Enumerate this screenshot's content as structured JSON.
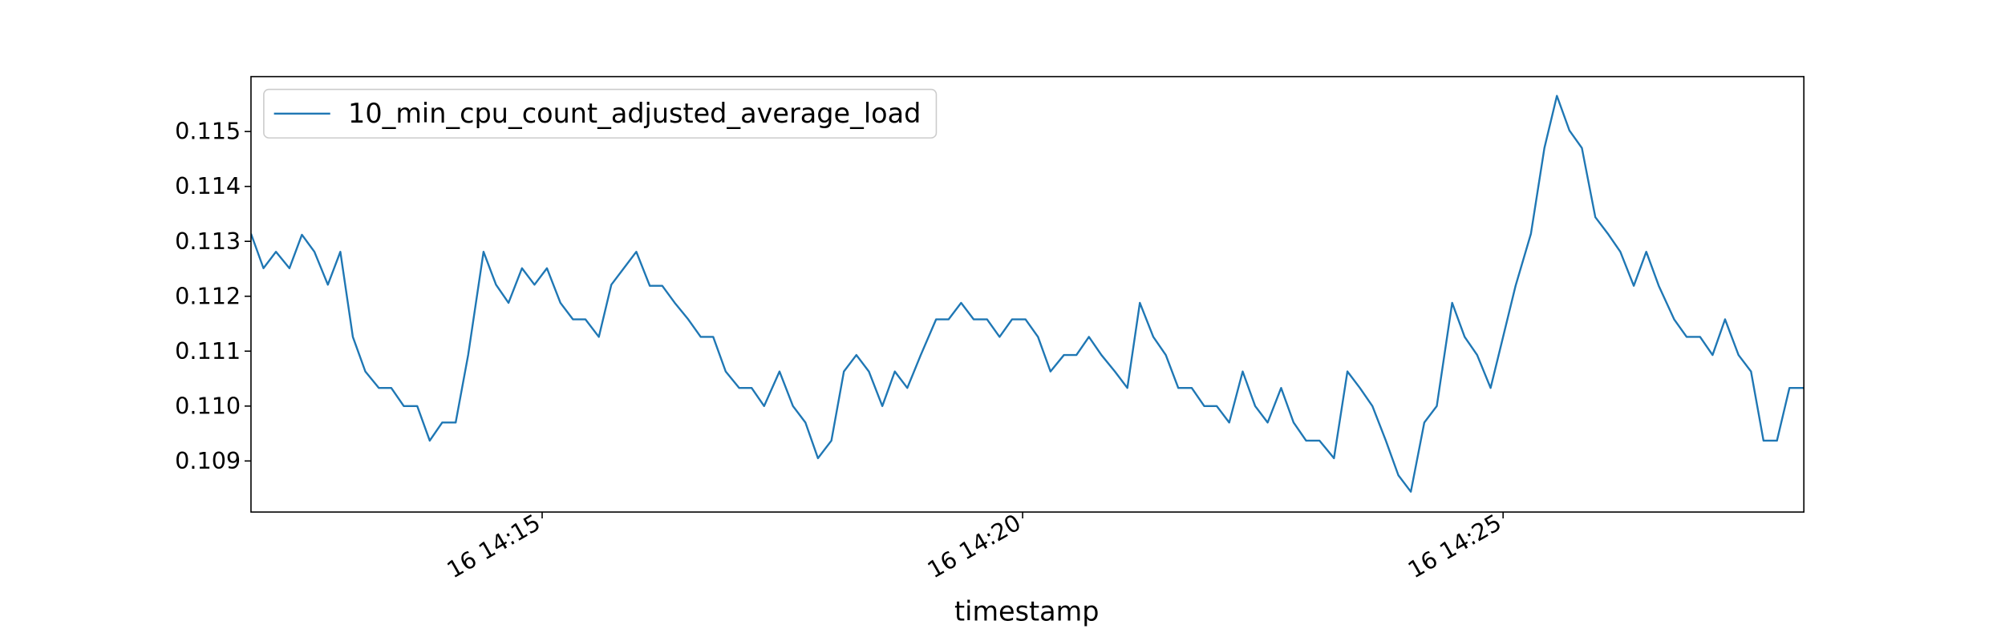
{
  "chart_data": {
    "type": "line",
    "x_label": "timestamp",
    "legend": "upper left",
    "x": [
      11.97,
      12.1,
      12.23,
      12.37,
      12.5,
      12.63,
      12.77,
      12.9,
      13.03,
      13.16,
      13.3,
      13.43,
      13.56,
      13.7,
      13.83,
      13.96,
      14.1,
      14.23,
      14.39,
      14.52,
      14.65,
      14.79,
      14.92,
      15.05,
      15.19,
      15.32,
      15.45,
      15.59,
      15.72,
      15.85,
      15.98,
      16.12,
      16.25,
      16.38,
      16.52,
      16.65,
      16.78,
      16.91,
      17.05,
      17.18,
      17.31,
      17.47,
      17.61,
      17.74,
      17.87,
      18.01,
      18.14,
      18.27,
      18.4,
      18.54,
      18.67,
      18.8,
      18.94,
      19.1,
      19.23,
      19.36,
      19.49,
      19.63,
      19.76,
      19.89,
      20.03,
      20.16,
      20.29,
      20.43,
      20.56,
      20.69,
      20.82,
      20.96,
      21.09,
      21.22,
      21.36,
      21.49,
      21.62,
      21.76,
      21.89,
      22.02,
      22.15,
      22.29,
      22.42,
      22.55,
      22.69,
      22.82,
      22.95,
      23.09,
      23.24,
      23.38,
      23.51,
      23.64,
      23.78,
      23.91,
      24.04,
      24.18,
      24.31,
      24.47,
      24.6,
      24.73,
      24.87,
      25.0,
      25.13,
      25.29,
      25.43,
      25.56,
      25.69,
      25.82,
      25.96,
      26.09,
      26.22,
      26.36,
      26.49,
      26.62,
      26.78,
      26.91,
      27.05,
      27.18,
      27.31,
      27.45,
      27.58,
      27.71,
      27.85,
      27.98,
      28.13
    ],
    "series": [
      {
        "name": "10_min_cpu_count_adjusted_average_load",
        "color": "#1f77b4",
        "values": [
          0.11314,
          0.11251,
          0.11281,
          0.11251,
          0.11312,
          0.11281,
          0.11221,
          0.11281,
          0.11126,
          0.11063,
          0.11033,
          0.11033,
          0.11,
          0.11,
          0.10937,
          0.1097,
          0.1097,
          0.11093,
          0.11281,
          0.11221,
          0.11188,
          0.11251,
          0.11221,
          0.11251,
          0.11188,
          0.11158,
          0.11158,
          0.11126,
          0.11221,
          0.11251,
          0.11281,
          0.11219,
          0.11219,
          0.11188,
          0.11158,
          0.11126,
          0.11126,
          0.11063,
          0.11033,
          0.11033,
          0.11,
          0.11063,
          0.11,
          0.1097,
          0.10905,
          0.10937,
          0.11063,
          0.11093,
          0.11063,
          0.11,
          0.11063,
          0.11033,
          0.11093,
          0.11158,
          0.11158,
          0.11188,
          0.11158,
          0.11158,
          0.11126,
          0.11158,
          0.11158,
          0.11126,
          0.11063,
          0.11093,
          0.11093,
          0.11126,
          0.11093,
          0.11063,
          0.11033,
          0.11188,
          0.11126,
          0.11093,
          0.11033,
          0.11033,
          0.11,
          0.11,
          0.1097,
          0.11063,
          0.11,
          0.1097,
          0.11033,
          0.1097,
          0.10937,
          0.10937,
          0.10905,
          0.11063,
          0.11033,
          0.11,
          0.10937,
          0.10874,
          0.10844,
          0.1097,
          0.11,
          0.11188,
          0.11126,
          0.11093,
          0.11033,
          0.11126,
          0.11219,
          0.11314,
          0.1147,
          0.11565,
          0.11502,
          0.1147,
          0.11344,
          0.11314,
          0.11281,
          0.11219,
          0.11281,
          0.11219,
          0.11158,
          0.11126,
          0.11126,
          0.11093,
          0.11158,
          0.11093,
          0.11063,
          0.10937,
          0.10937,
          0.11033,
          0.11033
        ]
      }
    ],
    "xlim": [
      11.97,
      28.13
    ],
    "xticks": [
      {
        "value": 15,
        "label": "16 14:15"
      },
      {
        "value": 20,
        "label": "16 14:20"
      },
      {
        "value": 25,
        "label": "16 14:25"
      }
    ],
    "ylim": [
      0.10807,
      0.116
    ],
    "yticks": [
      0.109,
      {
        "value": 0.11,
        "label": "0.110"
      },
      0.111,
      0.112,
      0.113,
      0.114,
      0.115
    ],
    "grid": false
  }
}
